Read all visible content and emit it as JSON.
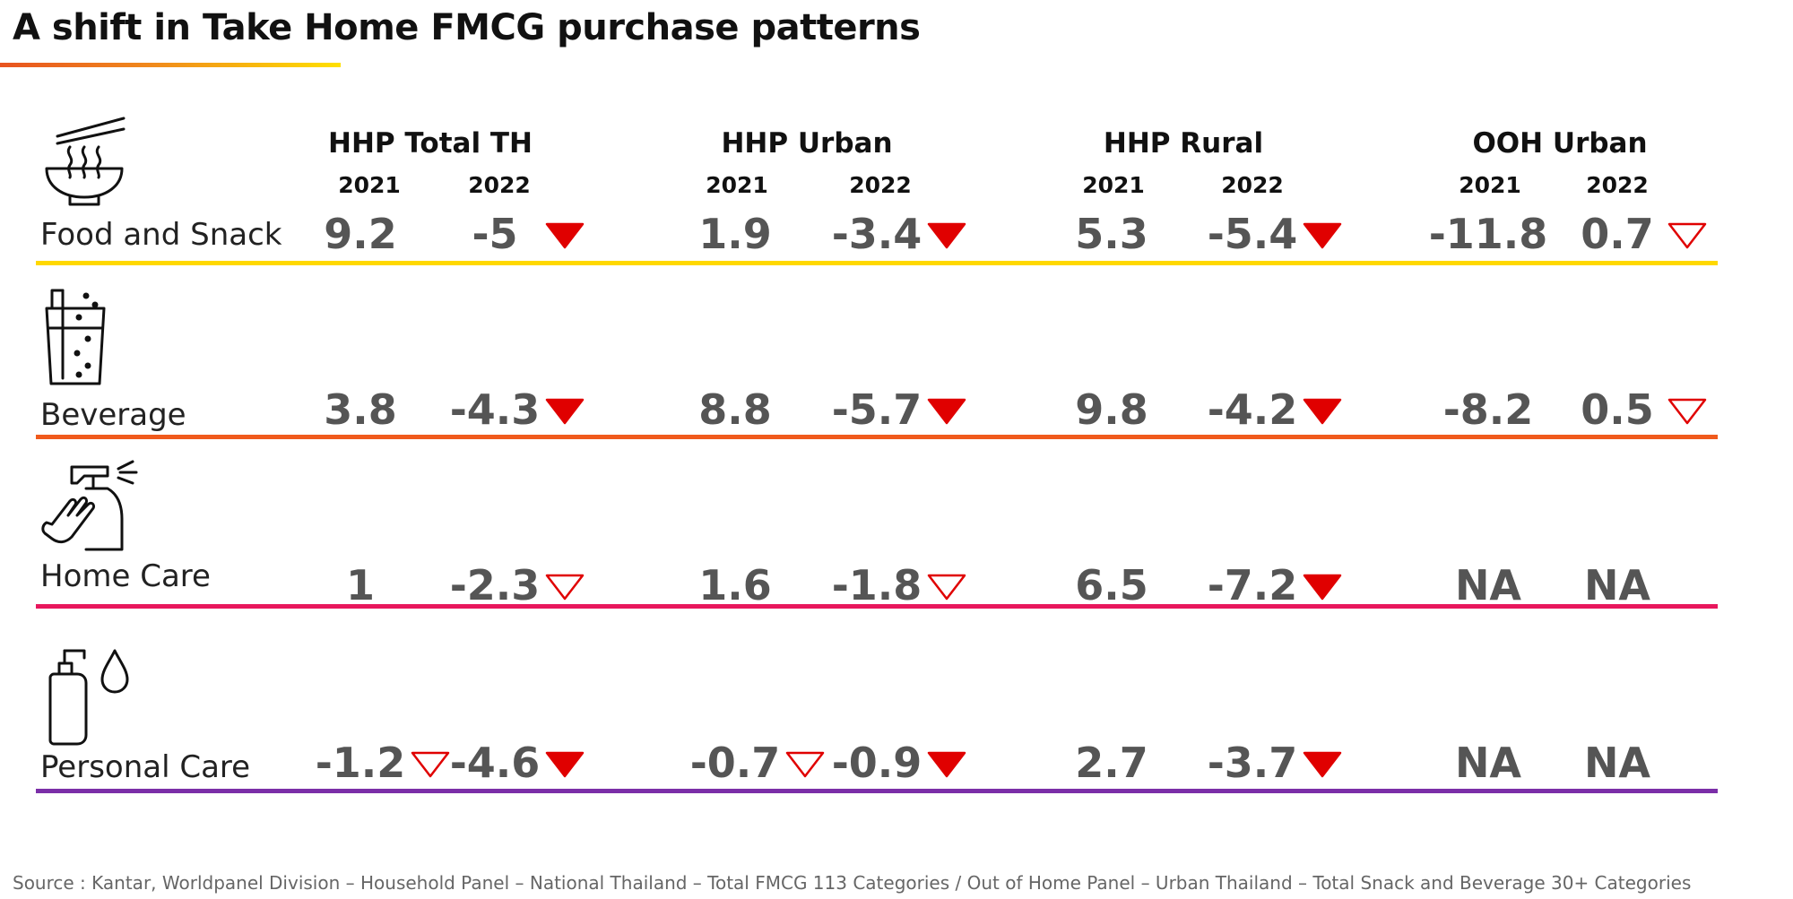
{
  "title": "A shift in Take Home FMCG purchase patterns",
  "source": "Source : Kantar, Worldpanel Division – Household Panel – National Thailand – Total FMCG 113 Categories / Out of Home Panel – Urban Thailand – Total Snack and Beverage 30+ Categories",
  "colors": {
    "food_line": "#ffd800",
    "beverage_line": "#f05a1c",
    "homecare_line": "#e8175d",
    "personalcare_line": "#7b2fa8",
    "arrow_red": "#e00000"
  },
  "chart_data": {
    "type": "table",
    "groups": [
      {
        "name": "HHP Total TH",
        "years": [
          "2021",
          "2022"
        ]
      },
      {
        "name": "HHP Urban",
        "years": [
          "2021",
          "2022"
        ]
      },
      {
        "name": "HHP Rural",
        "years": [
          "2021",
          "2022"
        ]
      },
      {
        "name": "OOH Urban",
        "years": [
          "2021",
          "2022"
        ]
      }
    ],
    "rows": [
      {
        "label": "Food and Snack",
        "icon": "noodle-bowl-icon",
        "values": [
          "9.2",
          "-5",
          "1.9",
          "-3.4",
          "5.3",
          "-5.4",
          "-11.8",
          "0.7"
        ],
        "arrows": [
          "",
          "filled",
          "",
          "filled",
          "",
          "filled",
          "",
          "outline"
        ]
      },
      {
        "label": "Beverage",
        "icon": "drink-glass-icon",
        "values": [
          "3.8",
          "-4.3",
          "8.8",
          "-5.7",
          "9.8",
          "-4.2",
          "-8.2",
          "0.5"
        ],
        "arrows": [
          "",
          "filled",
          "",
          "filled",
          "",
          "filled",
          "",
          "outline"
        ]
      },
      {
        "label": "Home Care",
        "icon": "spray-bottle-icon",
        "values": [
          "1",
          "-2.3",
          "1.6",
          "-1.8",
          "6.5",
          "-7.2",
          "NA",
          "NA"
        ],
        "arrows": [
          "",
          "outline",
          "",
          "outline",
          "",
          "filled",
          "",
          ""
        ]
      },
      {
        "label": "Personal Care",
        "icon": "soap-dispenser-icon",
        "values": [
          "-1.2",
          "-4.6",
          "-0.7",
          "-0.9",
          "2.7",
          "-3.7",
          "NA",
          "NA"
        ],
        "arrows": [
          "outline",
          "filled",
          "outline",
          "filled",
          "",
          "filled",
          "",
          ""
        ]
      }
    ]
  }
}
